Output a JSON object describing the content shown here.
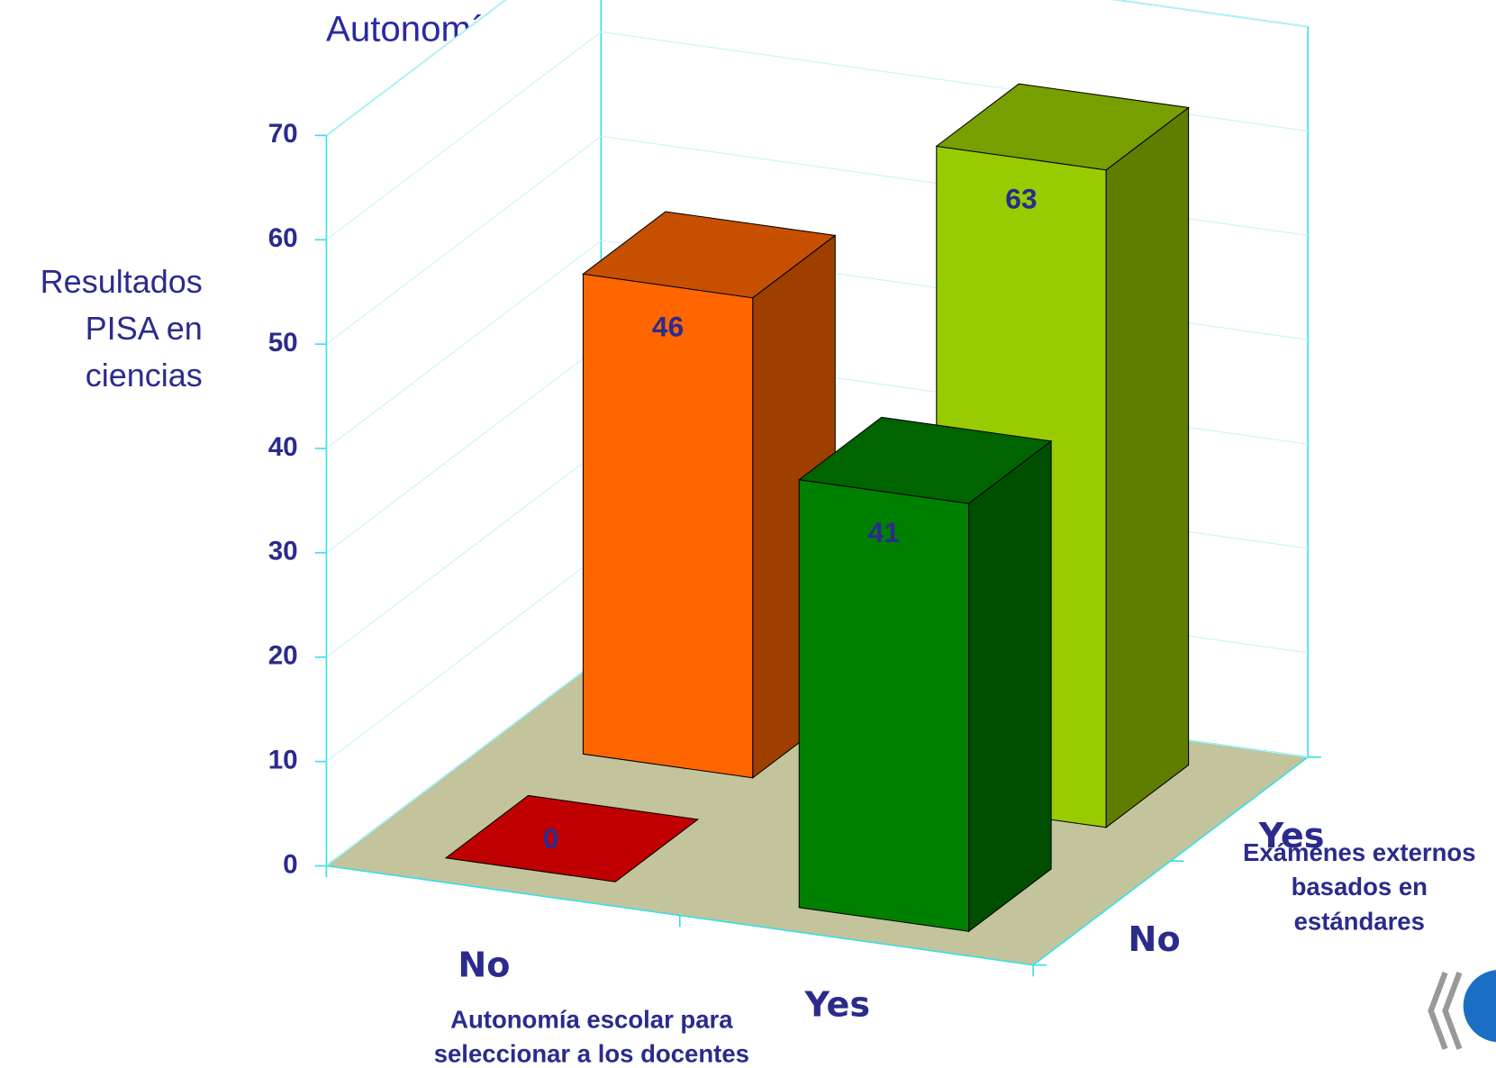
{
  "chart_data": {
    "type": "bar3d",
    "title": "Autonomía escolar para la selección del profesorado",
    "y_label": [
      "Resultados",
      "PISA en",
      "ciencias"
    ],
    "x_label": [
      "Autonomía escolar para",
      "seleccionar a los docentes"
    ],
    "z_label": [
      "Exámenes externos",
      "basados en",
      "estándares"
    ],
    "categories": [
      "No",
      "Yes"
    ],
    "depth_categories": [
      "No",
      "Yes"
    ],
    "series": [
      {
        "name": "No",
        "colors": [
          "#c00000",
          "#008000"
        ],
        "values": [
          0,
          41
        ]
      },
      {
        "name": "Yes",
        "colors": [
          "#ff6600",
          "#99cc00"
        ],
        "values": [
          46,
          63
        ]
      }
    ],
    "ylim": [
      0,
      70
    ],
    "yticks": [
      0,
      10,
      20,
      30,
      40,
      50,
      60,
      70
    ],
    "grid": true
  }
}
